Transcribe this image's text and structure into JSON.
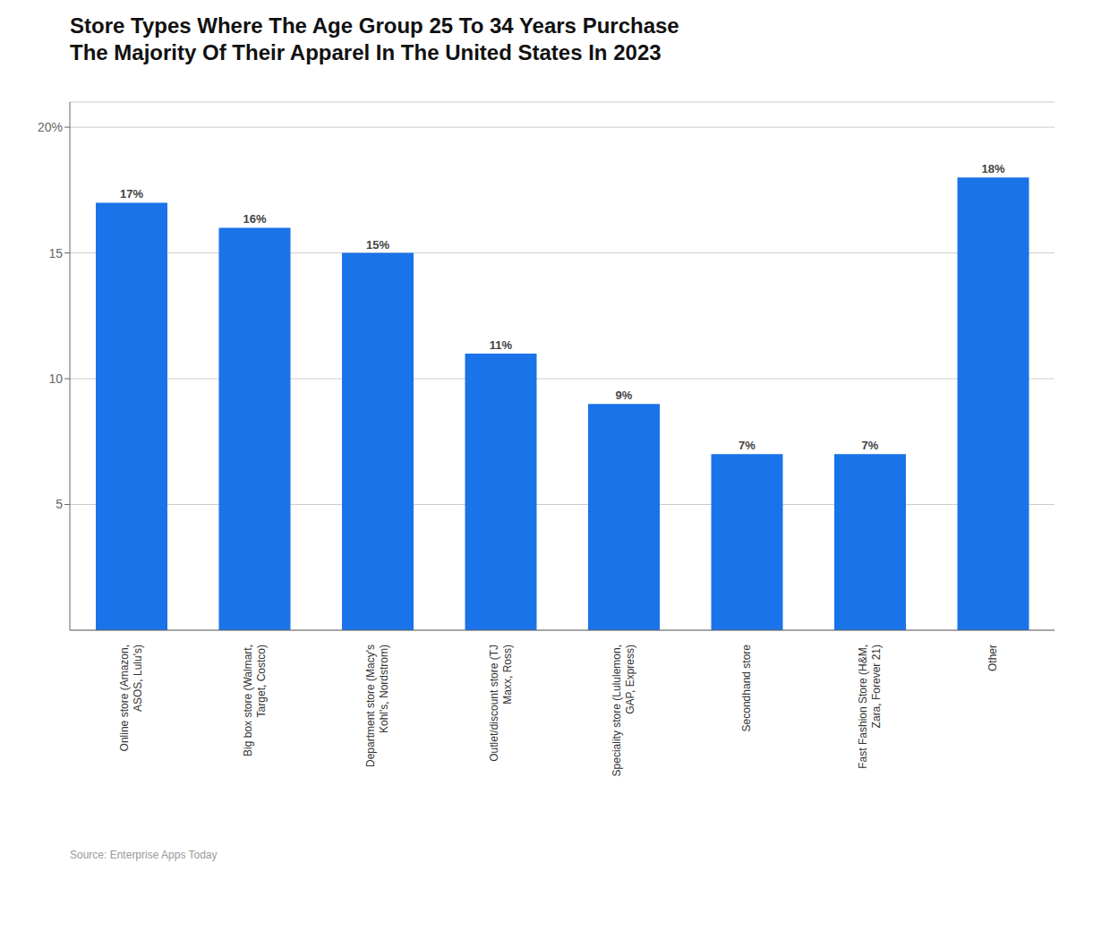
{
  "chart_data": {
    "type": "bar",
    "title": "Store Types Where The Age Group 25 To 34 Years Purchase\nThe Majority Of Their Apparel In The United States In 2023",
    "categories": [
      "Online store (Amazon,\nASOS, Lulu's)",
      "Big box store (Walmart,\nTarget, Costco)",
      "Department store (Macy's\nKohl's, Nordstrom)",
      "Outlet/discount store (TJ\nMaxx, Ross)",
      "Speciality store (Lululemon,\nGAP, Express)",
      "Secondhand store",
      "Fast Fashion Store (H&M,\nZara, Forever 21)",
      "Other"
    ],
    "values": [
      17,
      16,
      15,
      11,
      9,
      7,
      7,
      18
    ],
    "value_labels": [
      "17%",
      "16%",
      "15%",
      "11%",
      "9%",
      "7%",
      "7%",
      "18%"
    ],
    "data_labels": true,
    "color": "#1A73E8",
    "ylim": [
      0,
      21
    ],
    "yticks": [
      5,
      10,
      15,
      {
        "value": 20,
        "label": "20%"
      }
    ],
    "grid": true,
    "annotations": [
      "Source: Enterprise Apps Today"
    ]
  }
}
